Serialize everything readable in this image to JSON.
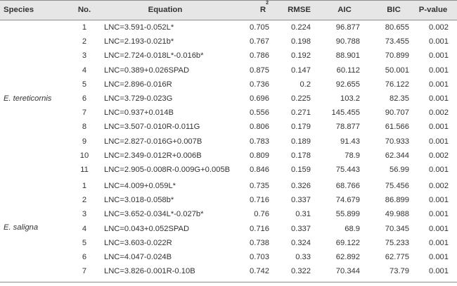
{
  "headers": {
    "species": "Species",
    "no": "No.",
    "equation": "Equation",
    "r2": "R",
    "r2_sup": "2",
    "rmse": "RMSE",
    "aic": "AIC",
    "bic": "BIC",
    "p": "P-value"
  },
  "groups": [
    {
      "species": "E. tereticornis",
      "rows": [
        {
          "no": "1",
          "eq": "LNC=3.591-0.052L*",
          "r2": "0.705",
          "rmse": "0.224",
          "aic": "96.877",
          "bic": "80.655",
          "p": "0.002"
        },
        {
          "no": "2",
          "eq": "LNC=2.193-0.021b*",
          "r2": "0.767",
          "rmse": "0.198",
          "aic": "90.788",
          "bic": "73.455",
          "p": "0.001"
        },
        {
          "no": "3",
          "eq": "LNC=2.724-0.018L*-0.016b*",
          "r2": "0.786",
          "rmse": "0.192",
          "aic": "88.901",
          "bic": "70.899",
          "p": "0.001"
        },
        {
          "no": "4",
          "eq": "LNC=0.389+0.026SPAD",
          "r2": "0.875",
          "rmse": "0.147",
          "aic": "60.112",
          "bic": "50.001",
          "p": "0.001"
        },
        {
          "no": "5",
          "eq": "LNC=2.896-0.016R",
          "r2": "0.736",
          "rmse": "0.2",
          "aic": "92.655",
          "bic": "76.122",
          "p": "0.001"
        },
        {
          "no": "6",
          "eq": "LNC=3.729-0.023G",
          "r2": "0.696",
          "rmse": "0.225",
          "aic": "103.2",
          "bic": "82.35",
          "p": "0.001"
        },
        {
          "no": "7",
          "eq": "LNC=0.937+0.014B",
          "r2": "0.556",
          "rmse": "0.271",
          "aic": "145.455",
          "bic": "90.707",
          "p": "0.002"
        },
        {
          "no": "8",
          "eq": "LNC=3.507-0.010R-0.011G",
          "r2": "0.806",
          "rmse": "0.179",
          "aic": "78.877",
          "bic": "61.566",
          "p": "0.001"
        },
        {
          "no": "9",
          "eq": "LNC=2.827-0.016G+0.007B",
          "r2": "0.783",
          "rmse": "0.189",
          "aic": "91.43",
          "bic": "70.933",
          "p": "0.001"
        },
        {
          "no": "10",
          "eq": "LNC=2.349-0.012R+0.006B",
          "r2": "0.809",
          "rmse": "0.178",
          "aic": "78.9",
          "bic": "62.344",
          "p": "0.002"
        },
        {
          "no": "11",
          "eq": "LNC=2.905-0.008R-0.009G+0.005B",
          "r2": "0.846",
          "rmse": "0.159",
          "aic": "75.443",
          "bic": "56.99",
          "p": "0.001"
        }
      ]
    },
    {
      "species": "E. saligna",
      "rows": [
        {
          "no": "1",
          "eq": "LNC=4.009+0.059L*",
          "r2": "0.735",
          "rmse": "0.326",
          "aic": "68.766",
          "bic": "75.456",
          "p": "0.002"
        },
        {
          "no": "2",
          "eq": "LNC=3.018-0.058b*",
          "r2": "0.716",
          "rmse": "0.337",
          "aic": "74.679",
          "bic": "86.899",
          "p": "0.001"
        },
        {
          "no": "3",
          "eq": "LNC=3.652-0.034L*-0.027b*",
          "r2": "0.76",
          "rmse": "0.31",
          "aic": "55.899",
          "bic": "49.988",
          "p": "0.001"
        },
        {
          "no": "4",
          "eq": "LNC=0.043+0.052SPAD",
          "r2": "0.716",
          "rmse": "0.337",
          "aic": "68.9",
          "bic": "70.345",
          "p": "0.001"
        },
        {
          "no": "5",
          "eq": "LNC=3.603-0.022R",
          "r2": "0.738",
          "rmse": "0.324",
          "aic": "69.122",
          "bic": "75.233",
          "p": "0.001"
        },
        {
          "no": "6",
          "eq": "LNC=4.047-0.024B",
          "r2": "0.703",
          "rmse": "0.33",
          "aic": "62.892",
          "bic": "62.775",
          "p": "0.001"
        },
        {
          "no": "7",
          "eq": "LNC=3.826-0.001R-0.10B",
          "r2": "0.742",
          "rmse": "0.322",
          "aic": "70.344",
          "bic": "73.79",
          "p": "0.001"
        }
      ]
    }
  ]
}
